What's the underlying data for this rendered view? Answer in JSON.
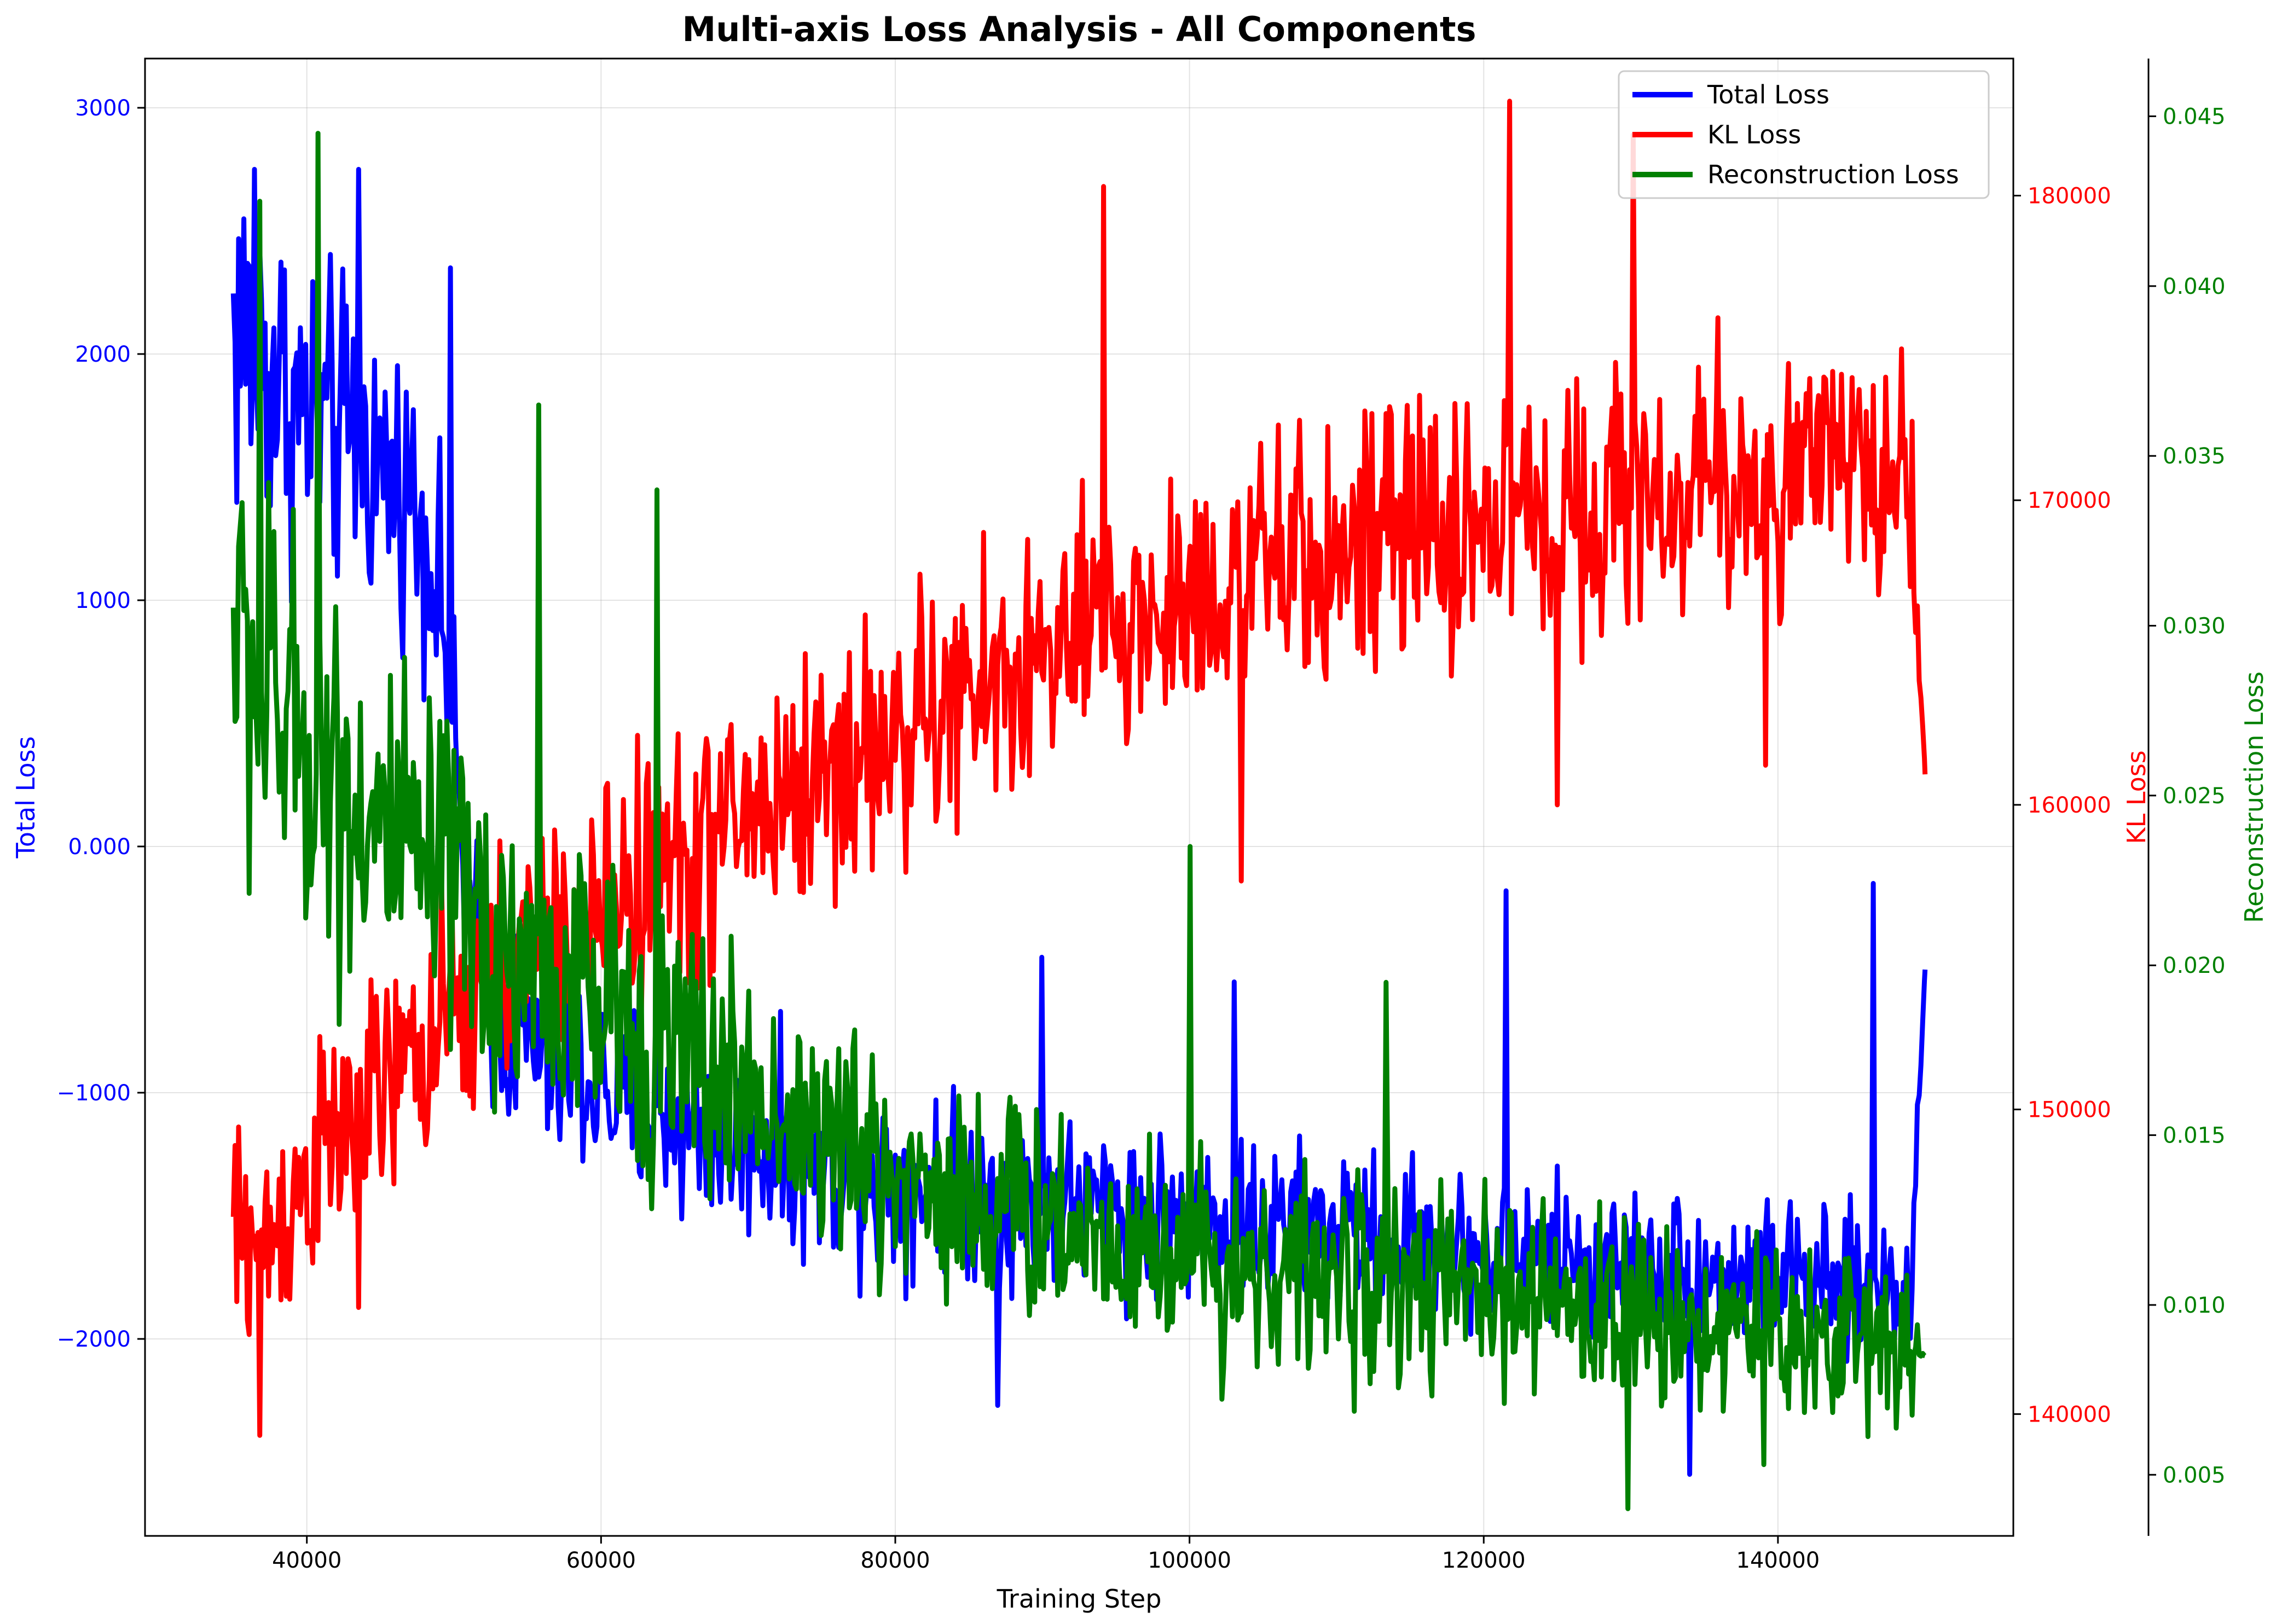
{
  "chart_data": {
    "type": "line",
    "title": "Multi-axis Loss Analysis - All Components",
    "xlabel": "Training Step",
    "x_range": [
      35000,
      150000
    ],
    "xlim": [
      29000,
      156000
    ],
    "x_ticks": [
      40000,
      60000,
      80000,
      100000,
      120000,
      140000
    ],
    "grid": true,
    "legend_position": "top-right",
    "axes": [
      {
        "id": "total",
        "label": "Total Loss",
        "position": "left",
        "color": "#0000ff",
        "ylim": [
          -2800,
          3200
        ],
        "ticks": [
          -2000,
          -1000,
          0,
          1000,
          2000,
          3000
        ]
      },
      {
        "id": "kl",
        "label": "KL Loss",
        "position": "right",
        "color": "#ff0000",
        "ylim": [
          136000,
          184500
        ],
        "ticks": [
          140000,
          150000,
          160000,
          170000,
          180000
        ]
      },
      {
        "id": "recon",
        "label": "Reconstruction Loss",
        "position": "right-outer",
        "color": "#008000",
        "ylim": [
          0.0032,
          0.0467
        ],
        "ticks": [
          0.005,
          0.01,
          0.015,
          0.02,
          0.025,
          0.03,
          0.035,
          0.04,
          0.045
        ]
      }
    ],
    "series": [
      {
        "name": "Total Loss",
        "axis": "total",
        "color": "#0000ff",
        "x": [
          35000,
          37000,
          39000,
          41000,
          43000,
          45000,
          47000,
          49000,
          51000,
          53000,
          55000,
          57000,
          59000,
          61000,
          63000,
          65000,
          67000,
          69000,
          71000,
          73000,
          75000,
          77000,
          79000,
          81000,
          83000,
          85000,
          87000,
          89000,
          91000,
          93000,
          95000,
          97000,
          99000,
          101000,
          103000,
          105000,
          107000,
          109000,
          111000,
          113000,
          115000,
          117000,
          119000,
          121000,
          123000,
          125000,
          127000,
          129000,
          131000,
          133000,
          135000,
          137000,
          139000,
          141000,
          143000,
          145000,
          147000,
          149000,
          150000
        ],
        "values": [
          2100,
          2000,
          1800,
          1700,
          1650,
          1550,
          1450,
          1100,
          -300,
          -700,
          -800,
          -900,
          -950,
          -1000,
          -1050,
          -1100,
          -1150,
          -1200,
          -1200,
          -1250,
          -1300,
          -1300,
          -1350,
          -1350,
          -1350,
          -1400,
          -1400,
          -1450,
          -1450,
          -1450,
          -1450,
          -1500,
          -1500,
          -1500,
          -1500,
          -1550,
          -1550,
          -1550,
          -1550,
          -1600,
          -1600,
          -1600,
          -1650,
          -1650,
          -1650,
          -1650,
          -1700,
          -1700,
          -1700,
          -1700,
          -1750,
          -1750,
          -1750,
          -1750,
          -1800,
          -1800,
          -1800,
          -1800,
          -500
        ],
        "noise": [
          800,
          700,
          650,
          600,
          600,
          500,
          500,
          450,
          400,
          400,
          400,
          400,
          380,
          380,
          380,
          380,
          380,
          360,
          360,
          360,
          360,
          360,
          360,
          340,
          340,
          340,
          340,
          340,
          340,
          320,
          320,
          320,
          320,
          320,
          320,
          300,
          300,
          300,
          300,
          300,
          300,
          300,
          280,
          280,
          280,
          280,
          280,
          280,
          280,
          280,
          280,
          280,
          280,
          280,
          280,
          280,
          280,
          280,
          0
        ],
        "peaks": [
          [
            36500,
            2750
          ],
          [
            43500,
            2750
          ],
          [
            49800,
            2350
          ],
          [
            90000,
            -450
          ],
          [
            103000,
            -550
          ],
          [
            121500,
            -180
          ],
          [
            146500,
            -150
          ],
          [
            134000,
            -2550
          ],
          [
            87000,
            -2270
          ]
        ]
      },
      {
        "name": "KL Loss",
        "axis": "kl",
        "color": "#ff0000",
        "x": [
          35000,
          37000,
          39000,
          41000,
          43000,
          45000,
          47000,
          49000,
          51000,
          53000,
          55000,
          57000,
          59000,
          61000,
          63000,
          65000,
          67000,
          69000,
          71000,
          73000,
          75000,
          77000,
          79000,
          81000,
          83000,
          85000,
          87000,
          89000,
          91000,
          93000,
          95000,
          97000,
          99000,
          101000,
          103000,
          105000,
          107000,
          109000,
          111000,
          113000,
          115000,
          117000,
          119000,
          121000,
          123000,
          125000,
          127000,
          129000,
          131000,
          133000,
          135000,
          137000,
          139000,
          141000,
          143000,
          145000,
          147000,
          149000,
          150000
        ],
        "values": [
          146000,
          145500,
          147000,
          148500,
          149500,
          150500,
          151500,
          152500,
          153500,
          154500,
          155000,
          155500,
          156000,
          157000,
          157500,
          158000,
          158500,
          159500,
          160000,
          160500,
          161000,
          161500,
          162000,
          162500,
          163000,
          163500,
          164000,
          164500,
          165000,
          165500,
          166000,
          166000,
          166500,
          167000,
          167500,
          167500,
          168000,
          168000,
          168500,
          168500,
          169000,
          169000,
          169000,
          169500,
          169500,
          169500,
          170000,
          170000,
          170000,
          170000,
          170500,
          170500,
          170500,
          170500,
          171000,
          171000,
          171000,
          171000,
          161000
        ],
        "noise": [
          3500,
          3500,
          3500,
          3500,
          3500,
          3500,
          3500,
          3500,
          3800,
          3800,
          3800,
          3800,
          4000,
          4000,
          4000,
          4000,
          4000,
          4000,
          4000,
          4000,
          4000,
          4000,
          4000,
          4000,
          4000,
          4000,
          4000,
          4000,
          4000,
          4000,
          4000,
          4000,
          4000,
          4000,
          4000,
          4000,
          4000,
          4000,
          4000,
          4000,
          4000,
          4000,
          4000,
          4000,
          4000,
          4000,
          4000,
          4000,
          4000,
          4000,
          4000,
          4000,
          4000,
          4000,
          4000,
          4000,
          4000,
          4000,
          0
        ],
        "peaks": [
          [
            36800,
            139300
          ],
          [
            43500,
            143500
          ],
          [
            94200,
            180300
          ],
          [
            121800,
            183100
          ],
          [
            130200,
            182000
          ],
          [
            125000,
            160000
          ],
          [
            103500,
            157500
          ],
          [
            139200,
            161300
          ]
        ]
      },
      {
        "name": "Reconstruction Loss",
        "axis": "recon",
        "color": "#008000",
        "x": [
          35000,
          37000,
          39000,
          41000,
          43000,
          45000,
          47000,
          49000,
          51000,
          53000,
          55000,
          57000,
          59000,
          61000,
          63000,
          65000,
          67000,
          69000,
          71000,
          73000,
          75000,
          77000,
          79000,
          81000,
          83000,
          85000,
          87000,
          89000,
          91000,
          93000,
          95000,
          97000,
          99000,
          101000,
          103000,
          105000,
          107000,
          109000,
          111000,
          113000,
          115000,
          117000,
          119000,
          121000,
          123000,
          125000,
          127000,
          129000,
          131000,
          133000,
          135000,
          137000,
          139000,
          141000,
          143000,
          145000,
          147000,
          149000,
          150000
        ],
        "values": [
          0.03,
          0.028,
          0.027,
          0.026,
          0.025,
          0.024,
          0.023,
          0.0225,
          0.0215,
          0.0205,
          0.02,
          0.0195,
          0.019,
          0.0185,
          0.018,
          0.0175,
          0.017,
          0.0165,
          0.016,
          0.0155,
          0.015,
          0.0145,
          0.014,
          0.0138,
          0.0135,
          0.0132,
          0.013,
          0.0127,
          0.0125,
          0.0122,
          0.012,
          0.0118,
          0.0116,
          0.0114,
          0.0112,
          0.011,
          0.0109,
          0.0108,
          0.0107,
          0.0106,
          0.0105,
          0.0104,
          0.0103,
          0.0102,
          0.0101,
          0.01,
          0.0099,
          0.0098,
          0.0097,
          0.0096,
          0.0095,
          0.0094,
          0.0093,
          0.0092,
          0.0091,
          0.009,
          0.009,
          0.009,
          0.0085
        ],
        "noise": [
          0.006,
          0.006,
          0.0055,
          0.0055,
          0.005,
          0.005,
          0.0048,
          0.0046,
          0.0045,
          0.0044,
          0.0043,
          0.0042,
          0.0041,
          0.004,
          0.0039,
          0.0038,
          0.0037,
          0.0036,
          0.0035,
          0.0034,
          0.0034,
          0.0033,
          0.0033,
          0.0032,
          0.0032,
          0.0031,
          0.0031,
          0.003,
          0.003,
          0.003,
          0.003,
          0.0029,
          0.0029,
          0.0029,
          0.0028,
          0.0028,
          0.0028,
          0.0027,
          0.0027,
          0.0027,
          0.0027,
          0.0026,
          0.0026,
          0.0026,
          0.0026,
          0.0025,
          0.0025,
          0.0025,
          0.0025,
          0.0025,
          0.0025,
          0.0025,
          0.0025,
          0.0025,
          0.0025,
          0.0025,
          0.0025,
          0.0025,
          0.0
        ],
        "peaks": [
          [
            40800,
            0.0445
          ],
          [
            36800,
            0.0425
          ],
          [
            55800,
            0.0365
          ],
          [
            63800,
            0.034
          ],
          [
            100100,
            0.0235
          ],
          [
            113400,
            0.0195
          ],
          [
            129800,
            0.004
          ],
          [
            139100,
            0.0053
          ]
        ]
      }
    ]
  }
}
